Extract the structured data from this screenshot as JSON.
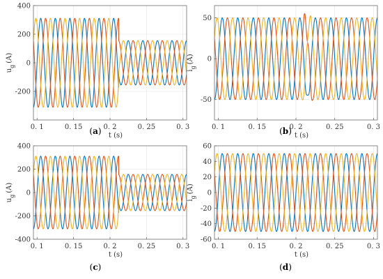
{
  "colors": {
    "phase_a": "#0072BD",
    "phase_b": "#D95319",
    "phase_c": "#EDB120"
  },
  "chart_data": [
    {
      "type": "line",
      "id": "a",
      "caption": "a",
      "xlabel": "t (s)",
      "ylabel": "u",
      "ylabel_sub": "g",
      "ylabel_unit": "(A)",
      "xlim": [
        0.095,
        0.305
      ],
      "ylim": [
        -400,
        400
      ],
      "xticks": [
        0.1,
        0.15,
        0.2,
        0.25,
        0.3
      ],
      "xtick_labels": [
        "0. 1",
        "0. 15",
        "0. 2",
        "0. 25",
        "0. 3"
      ],
      "yticks": [
        -400,
        -200,
        0,
        200,
        400
      ],
      "ytick_labels": [
        "",
        "-200",
        "0",
        "200",
        "400"
      ],
      "grid": true,
      "frequency_hz": 50,
      "step_time_s": 0.212,
      "amplitude_before": 311,
      "amplitude_after": 155,
      "series": [
        {
          "color": "phase_a",
          "phase_deg": 0
        },
        {
          "color": "phase_b",
          "phase_deg": -120
        },
        {
          "color": "phase_c",
          "phase_deg": 120
        }
      ]
    },
    {
      "type": "line",
      "id": "b",
      "caption": "b",
      "xlabel": "t (s)",
      "ylabel": "i",
      "ylabel_sub": "g",
      "ylabel_unit": "(A)",
      "xlim": [
        0.095,
        0.305
      ],
      "ylim": [
        -75,
        65
      ],
      "xticks": [
        0.1,
        0.15,
        0.2,
        0.25,
        0.3
      ],
      "xtick_labels": [
        "0. 1",
        "0. 15",
        "0. 2",
        "0. 25",
        "0. 3"
      ],
      "yticks": [
        -50,
        0,
        50
      ],
      "ytick_labels": [
        "-50",
        "0",
        "50"
      ],
      "grid": true,
      "frequency_hz": 50,
      "step_time_s": 0.212,
      "amplitude_before": 50,
      "amplitude_after": 50,
      "transient": {
        "start_s": 0.208,
        "end_s": 0.222,
        "extra_amplitude": 9
      },
      "series": [
        {
          "color": "phase_a",
          "phase_deg": 0
        },
        {
          "color": "phase_b",
          "phase_deg": -120
        },
        {
          "color": "phase_c",
          "phase_deg": 120
        }
      ]
    },
    {
      "type": "line",
      "id": "c",
      "caption": "c",
      "xlabel": "t (s)",
      "ylabel": "u",
      "ylabel_sub": "g",
      "ylabel_unit": "(A)",
      "xlim": [
        0.095,
        0.305
      ],
      "ylim": [
        -400,
        400
      ],
      "xticks": [
        0.1,
        0.15,
        0.2,
        0.25,
        0.3
      ],
      "xtick_labels": [
        "0. 1",
        "0. 15",
        "0. 2",
        "0. 25",
        "0. 3"
      ],
      "yticks": [
        -400,
        -200,
        0,
        200,
        400
      ],
      "ytick_labels": [
        "-400",
        "-200",
        "0",
        "200",
        "400"
      ],
      "grid": true,
      "frequency_hz": 50,
      "step_time_s": 0.212,
      "amplitude_before": 311,
      "amplitude_after": 155,
      "series": [
        {
          "color": "phase_a",
          "phase_deg": 0
        },
        {
          "color": "phase_b",
          "phase_deg": -120
        },
        {
          "color": "phase_c",
          "phase_deg": 120
        }
      ]
    },
    {
      "type": "line",
      "id": "d",
      "caption": "d",
      "xlabel": "t (s)",
      "ylabel": "i",
      "ylabel_sub": "g",
      "ylabel_unit": "(A)",
      "xlim": [
        0.095,
        0.305
      ],
      "ylim": [
        -60,
        60
      ],
      "xticks": [
        0.1,
        0.15,
        0.2,
        0.25,
        0.3
      ],
      "xtick_labels": [
        "0. 1",
        "0. 15",
        "0. 2",
        "0. 25",
        "0. 3"
      ],
      "yticks": [
        -60,
        -40,
        -20,
        0,
        20,
        40,
        60
      ],
      "ytick_labels": [
        "-60",
        "-40",
        "-20",
        "0",
        "20",
        "40",
        "60"
      ],
      "grid": true,
      "frequency_hz": 50,
      "step_time_s": 0.212,
      "amplitude_before": 50,
      "amplitude_after": 50,
      "series": [
        {
          "color": "phase_a",
          "phase_deg": 0
        },
        {
          "color": "phase_b",
          "phase_deg": -120
        },
        {
          "color": "phase_c",
          "phase_deg": 120
        }
      ]
    }
  ]
}
